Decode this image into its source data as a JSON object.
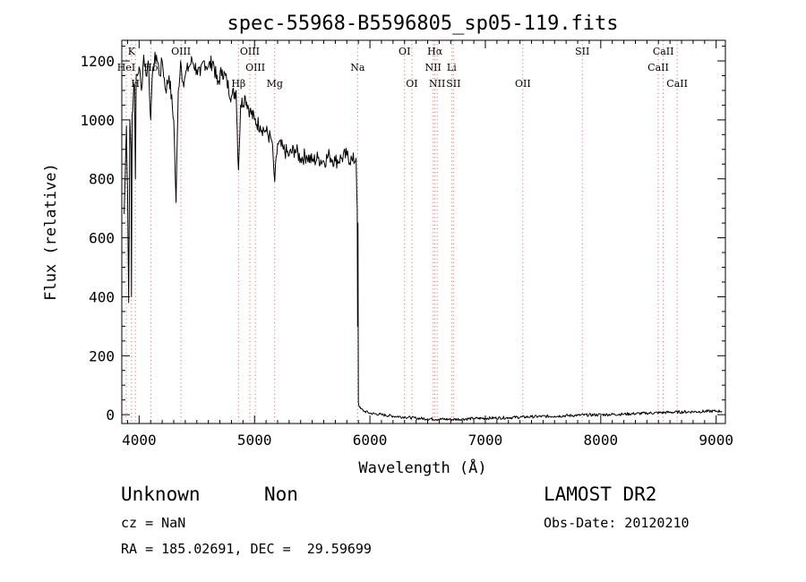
{
  "chart_data": {
    "type": "line",
    "title": "spec-55968-B5596805_sp05-119.fits",
    "xlabel": "Wavelength (Å)",
    "ylabel": "Flux (relative)",
    "xlim": [
      3850,
      9080
    ],
    "ylim": [
      -30,
      1270
    ],
    "xticks": [
      4000,
      5000,
      6000,
      7000,
      8000,
      9000
    ],
    "yticks": [
      0,
      200,
      400,
      600,
      800,
      1000,
      1200
    ],
    "grid": false,
    "line_color": "#000000",
    "marker_color": "#e07070",
    "series": [
      {
        "x": [
          3870,
          3880,
          3890,
          3900,
          3910,
          3920,
          3930,
          3934,
          3940,
          3950,
          3960,
          3968,
          3975,
          3985,
          4000,
          4020,
          4040,
          4060,
          4080,
          4101,
          4120,
          4150,
          4180,
          4200,
          4230,
          4260,
          4300,
          4320,
          4340,
          4360,
          4380,
          4400,
          4430,
          4460,
          4500,
          4530,
          4560,
          4600,
          4640,
          4680,
          4720,
          4760,
          4800,
          4840,
          4861,
          4880,
          4920,
          4960,
          5000,
          5050,
          5100,
          5150,
          5175,
          5200,
          5250,
          5300,
          5350,
          5400,
          5450,
          5500,
          5550,
          5600,
          5650,
          5700,
          5750,
          5800,
          5850,
          5880,
          5890,
          5893,
          5896,
          5900,
          5905,
          5910,
          5920,
          5950,
          6000,
          6100,
          6200,
          6300,
          6400,
          6500,
          6600,
          6700,
          6800,
          6900,
          7000,
          7200,
          7400,
          7600,
          7800,
          8000,
          8200,
          8400,
          8600,
          8800,
          9000,
          9050
        ],
        "y": [
          680,
          820,
          980,
          760,
          380,
          1000,
          900,
          400,
          1020,
          1080,
          1120,
          800,
          1150,
          1150,
          1180,
          1100,
          1220,
          1150,
          1200,
          1000,
          1180,
          1220,
          1150,
          1200,
          1100,
          1150,
          1000,
          720,
          1100,
          1200,
          1130,
          1150,
          1180,
          1200,
          1170,
          1150,
          1200,
          1180,
          1200,
          1120,
          1170,
          1130,
          1080,
          1100,
          830,
          1050,
          1080,
          1030,
          1000,
          980,
          960,
          930,
          790,
          920,
          900,
          880,
          900,
          870,
          880,
          860,
          870,
          860,
          880,
          860,
          870,
          880,
          860,
          870,
          700,
          300,
          650,
          40,
          30,
          25,
          20,
          12,
          5,
          0,
          -5,
          -8,
          -12,
          -14,
          -15,
          -16,
          -15,
          -13,
          -12,
          -10,
          -7,
          -5,
          -2,
          0,
          2,
          5,
          8,
          10,
          12,
          12
        ]
      }
    ],
    "line_markers": [
      {
        "label": "K",
        "x": 3934,
        "row": 0
      },
      {
        "label": "HeI",
        "x": 3889,
        "row": 1
      },
      {
        "label": "Hδ",
        "x": 4101,
        "row": 1
      },
      {
        "label": "H",
        "x": 3968,
        "row": 2
      },
      {
        "label": "OIII",
        "x": 4363,
        "row": 0
      },
      {
        "label": "OIII",
        "x": 4959,
        "row": 0
      },
      {
        "label": "OIII",
        "x": 5007,
        "row": 1
      },
      {
        "label": "Hβ",
        "x": 4861,
        "row": 2
      },
      {
        "label": "Mg",
        "x": 5175,
        "row": 2
      },
      {
        "label": "Na",
        "x": 5893,
        "row": 1
      },
      {
        "label": "OI",
        "x": 6300,
        "row": 0
      },
      {
        "label": "OI",
        "x": 6364,
        "row": 2
      },
      {
        "label": "Hα",
        "x": 6563,
        "row": 0
      },
      {
        "label": "NII",
        "x": 6548,
        "row": 1
      },
      {
        "label": "Li",
        "x": 6708,
        "row": 1
      },
      {
        "label": "NII",
        "x": 6583,
        "row": 2
      },
      {
        "label": "SII",
        "x": 6724,
        "row": 2
      },
      {
        "label": "OII",
        "x": 7325,
        "row": 2
      },
      {
        "label": "SII",
        "x": 7840,
        "row": 0
      },
      {
        "label": "CaII",
        "x": 8542,
        "row": 0
      },
      {
        "label": "CaII",
        "x": 8498,
        "row": 1
      },
      {
        "label": "CaII",
        "x": 8662,
        "row": 2
      }
    ]
  },
  "info": {
    "class": "Unknown",
    "subclass": "Non",
    "cz": "cz = NaN",
    "coords": "RA = 185.02691, DEC =  29.59699",
    "survey": "LAMOST DR2",
    "obs_date": "Obs-Date: 20120210"
  }
}
